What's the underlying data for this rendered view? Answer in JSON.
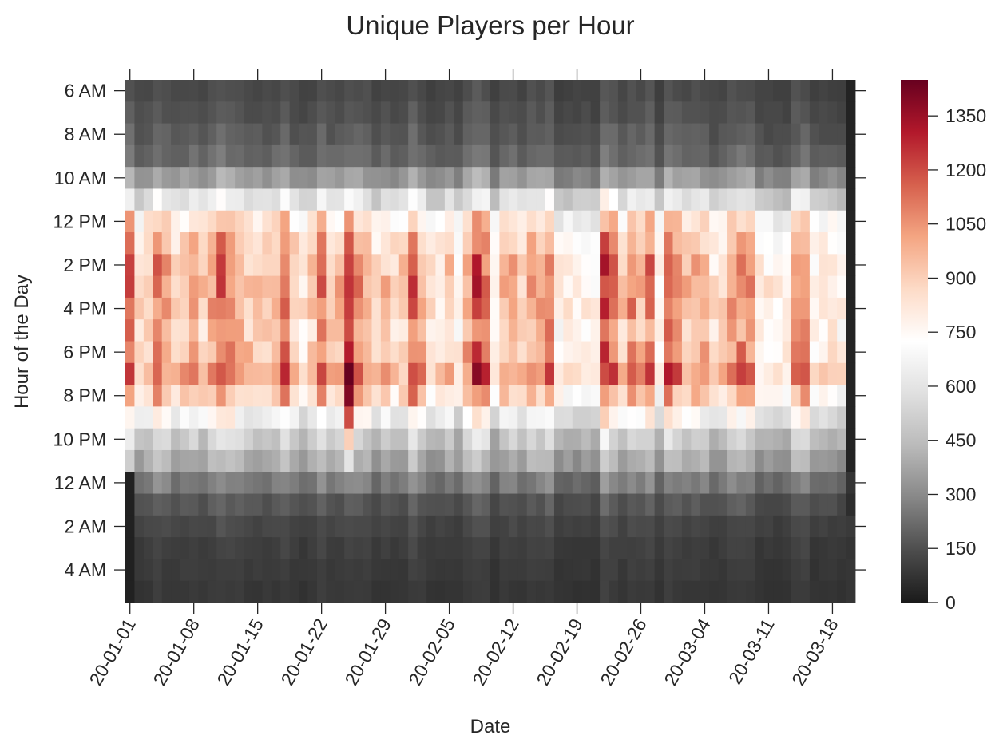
{
  "chart_data": {
    "type": "heatmap",
    "title": "Unique Players per Hour",
    "xlabel": "Date",
    "ylabel": "Hour of the Day",
    "x_start_date": "2020-01-01",
    "num_days": 80,
    "hours": [
      "6 AM",
      "7 AM",
      "8 AM",
      "9 AM",
      "10 AM",
      "11 AM",
      "12 PM",
      "1 PM",
      "2 PM",
      "3 PM",
      "4 PM",
      "5 PM",
      "6 PM",
      "7 PM",
      "8 PM",
      "9 PM",
      "10 PM",
      "11 PM",
      "12 AM",
      "1 AM",
      "2 AM",
      "3 AM",
      "4 AM",
      "5 AM"
    ],
    "ytick_labels": [
      "6 AM",
      "8 AM",
      "10 AM",
      "12 PM",
      "2 PM",
      "4 PM",
      "6 PM",
      "8 PM",
      "10 PM",
      "12 AM",
      "2 AM",
      "4 AM"
    ],
    "xtick_labels": [
      "20-01-01",
      "20-01-08",
      "20-01-15",
      "20-01-22",
      "20-01-29",
      "20-02-05",
      "20-02-12",
      "20-02-19",
      "20-02-26",
      "20-03-04",
      "20-03-11",
      "20-03-18"
    ],
    "hourly_profile_typical_day": [
      130,
      150,
      170,
      200,
      330,
      560,
      780,
      870,
      920,
      940,
      920,
      880,
      920,
      980,
      860,
      650,
      480,
      380,
      250,
      160,
      120,
      100,
      90,
      80
    ],
    "hourly_profile_peak_day_2020-01-25": [
      150,
      170,
      190,
      230,
      380,
      700,
      1050,
      1180,
      1220,
      1250,
      1230,
      1200,
      1300,
      1450,
      1400,
      1200,
      900,
      600,
      300,
      190,
      140,
      120,
      100,
      90
    ],
    "color_scale": {
      "vmin": 0,
      "vmax": 1450,
      "ticks": [
        0,
        150,
        300,
        450,
        600,
        750,
        900,
        1050,
        1200,
        1350
      ],
      "colormap": "RdGy_r",
      "stops": [
        "#1a1a1a",
        "#4d4d4d",
        "#878787",
        "#bababa",
        "#e0e0e0",
        "#ffffff",
        "#fddbc7",
        "#f4a582",
        "#d6604d",
        "#b2182b",
        "#67001f"
      ]
    },
    "grid": false,
    "colorbar_position": "right"
  }
}
